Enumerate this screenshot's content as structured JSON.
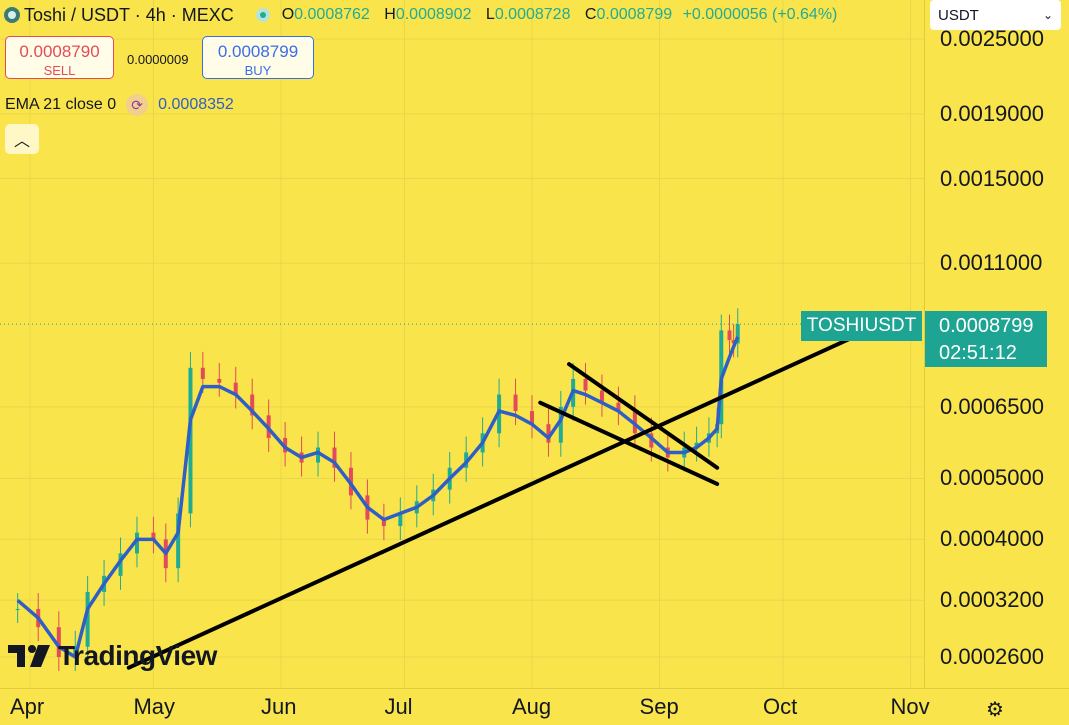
{
  "header": {
    "symbol_line": "Toshi / USDT · 4h · MEXC",
    "open_label": "O",
    "open": "0.0008762",
    "high_label": "H",
    "high": "0.0008902",
    "low_label": "L",
    "low": "0.0008728",
    "close_label": "C",
    "close": "0.0008799",
    "change": "+0.0000056 (+0.64%)"
  },
  "trade": {
    "sell_price": "0.0008790",
    "sell_label": "SELL",
    "spread": "0.0000009",
    "buy_price": "0.0008799",
    "buy_label": "BUY"
  },
  "indicator": {
    "label": "EMA 21 close 0",
    "value": "0.0008352"
  },
  "currency_select": {
    "value": "USDT",
    "options": [
      "USDT"
    ]
  },
  "price_label": {
    "symbol": "TOSHIUSDT",
    "price": "0.0008799",
    "countdown": "02:51:12"
  },
  "watermark": "TradingView",
  "colors": {
    "background": "#f9e44b",
    "up": "#22ab94",
    "down": "#e34b5a",
    "ema": "#2f5fc4",
    "trendline": "#000000",
    "accent": "#1ea492"
  },
  "icons": {
    "symbol": "toshi-coin-icon",
    "status": "market-open-dot-icon",
    "ema": "indicator-loading-icon",
    "collapse": "chevron-up-icon",
    "select": "chevron-down-icon",
    "settings": "gear-icon"
  },
  "chart_data": {
    "type": "line",
    "scale": "log",
    "y_ticks": [
      "0.0025000",
      "0.0019000",
      "0.0015000",
      "0.0011000",
      "0.0006500",
      "0.0005000",
      "0.0004000",
      "0.0003200",
      "0.0002600"
    ],
    "y_tick_values": [
      0.0025,
      0.0019,
      0.0015,
      0.0011,
      0.00065,
      0.0005,
      0.0004,
      0.00032,
      0.00026
    ],
    "x_ticks": [
      "Apr",
      "May",
      "Jun",
      "Jul",
      "Aug",
      "Sep",
      "Oct",
      "Nov"
    ],
    "series": [
      {
        "style": "candlestick",
        "x": [
          "Mar 29",
          "Apr 3",
          "Apr 8",
          "Apr 12",
          "Apr 15",
          "Apr 19",
          "Apr 23",
          "Apr 27",
          "May 1",
          "May 4",
          "May 7",
          "May 10",
          "May 13",
          "May 17",
          "May 21",
          "May 25",
          "May 29",
          "Jun 2",
          "Jun 6",
          "Jun 10",
          "Jun 14",
          "Jun 18",
          "Jun 22",
          "Jun 26",
          "Jun 30",
          "Jul 4",
          "Jul 8",
          "Jul 12",
          "Jul 16",
          "Jul 20",
          "Jul 24",
          "Jul 28",
          "Aug 1",
          "Aug 5",
          "Aug 8",
          "Aug 11",
          "Aug 14",
          "Aug 18",
          "Aug 22",
          "Aug 26",
          "Aug 30",
          "Sep 3",
          "Sep 7",
          "Sep 10",
          "Sep 13",
          "Sep 15",
          "Sep 16",
          "Sep 18",
          "Sep 19",
          "Sep 20"
        ],
        "values": [
          0.00031,
          0.00029,
          0.00026,
          0.00027,
          0.00033,
          0.00035,
          0.00038,
          0.00041,
          0.0004,
          0.00036,
          0.00044,
          0.00075,
          0.00072,
          0.00071,
          0.00068,
          0.00063,
          0.00058,
          0.00055,
          0.00053,
          0.00056,
          0.00052,
          0.00047,
          0.00043,
          0.00042,
          0.00044,
          0.00046,
          0.00048,
          0.00052,
          0.00055,
          0.00059,
          0.00068,
          0.00064,
          0.00061,
          0.00057,
          0.00065,
          0.00072,
          0.00069,
          0.00066,
          0.00064,
          0.00059,
          0.00056,
          0.00054,
          0.00056,
          0.00057,
          0.00059,
          0.00061,
          0.00086,
          0.00083,
          0.00082,
          0.00088
        ]
      },
      {
        "name": "EMA 21 close 0",
        "x": [
          "Mar 29",
          "Apr 3",
          "Apr 8",
          "Apr 12",
          "Apr 15",
          "Apr 19",
          "Apr 23",
          "Apr 27",
          "May 1",
          "May 4",
          "May 7",
          "May 10",
          "May 13",
          "May 17",
          "May 21",
          "May 25",
          "May 29",
          "Jun 2",
          "Jun 6",
          "Jun 10",
          "Jun 14",
          "Jun 18",
          "Jun 22",
          "Jun 26",
          "Jun 30",
          "Jul 4",
          "Jul 8",
          "Jul 12",
          "Jul 16",
          "Jul 20",
          "Jul 24",
          "Jul 28",
          "Aug 1",
          "Aug 5",
          "Aug 8",
          "Aug 11",
          "Aug 14",
          "Aug 18",
          "Aug 22",
          "Aug 26",
          "Aug 30",
          "Sep 3",
          "Sep 7",
          "Sep 10",
          "Sep 13",
          "Sep 15",
          "Sep 16",
          "Sep 18",
          "Sep 19",
          "Sep 20"
        ],
        "values": [
          0.00032,
          0.0003,
          0.00027,
          0.00026,
          0.00031,
          0.00034,
          0.00037,
          0.0004,
          0.0004,
          0.00038,
          0.00041,
          0.00062,
          0.0007,
          0.0007,
          0.00068,
          0.00064,
          0.0006,
          0.00056,
          0.00054,
          0.00055,
          0.00053,
          0.00049,
          0.00045,
          0.00043,
          0.00044,
          0.00045,
          0.00047,
          0.0005,
          0.00053,
          0.00057,
          0.00064,
          0.00063,
          0.00061,
          0.00058,
          0.00062,
          0.00069,
          0.00068,
          0.00066,
          0.00064,
          0.00061,
          0.00058,
          0.00055,
          0.00055,
          0.00056,
          0.00058,
          0.0006,
          0.00072,
          0.00078,
          0.00081,
          0.00084
        ]
      }
    ],
    "trendlines": [
      {
        "from": [
          "Apr 25",
          0.00025
        ],
        "to": [
          "Oct 20",
          0.00085
        ]
      },
      {
        "from": [
          "Aug 10",
          0.00076
        ],
        "to": [
          "Sep 15",
          0.00052
        ]
      },
      {
        "from": [
          "Aug 3",
          0.00066
        ],
        "to": [
          "Sep 15",
          0.00049
        ]
      }
    ]
  }
}
